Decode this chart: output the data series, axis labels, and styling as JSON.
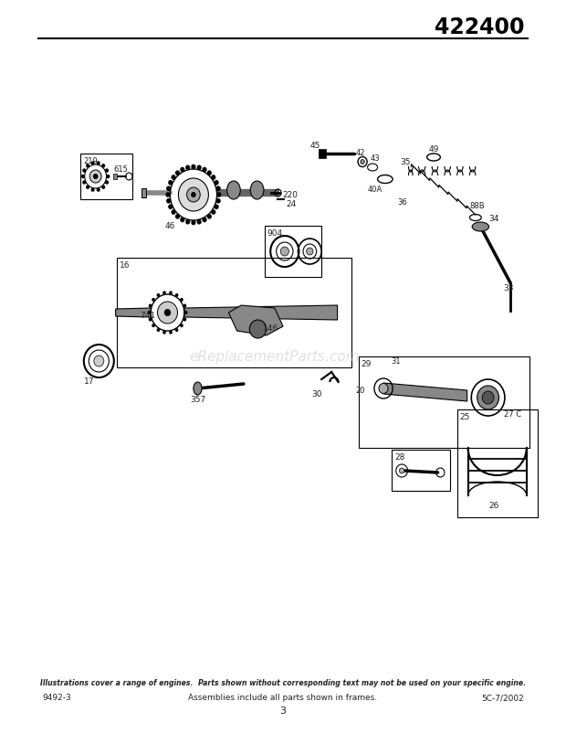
{
  "title_number": "422400",
  "page_number": "3",
  "footer_left": "9492-3",
  "footer_center": "Assemblies include all parts shown in frames.",
  "footer_right": "5C-7/2002",
  "footer_italic": "Illustrations cover a range of engines.  Parts shown without corresponding text may not be used on your specific engine.",
  "bg_color": "#ffffff",
  "border_color": "#000000",
  "text_color": "#222222",
  "watermark_text": "eReplacementParts.com",
  "watermark_color": "#bbbbbb",
  "watermark_alpha": 0.45,
  "line_color": "#333333"
}
